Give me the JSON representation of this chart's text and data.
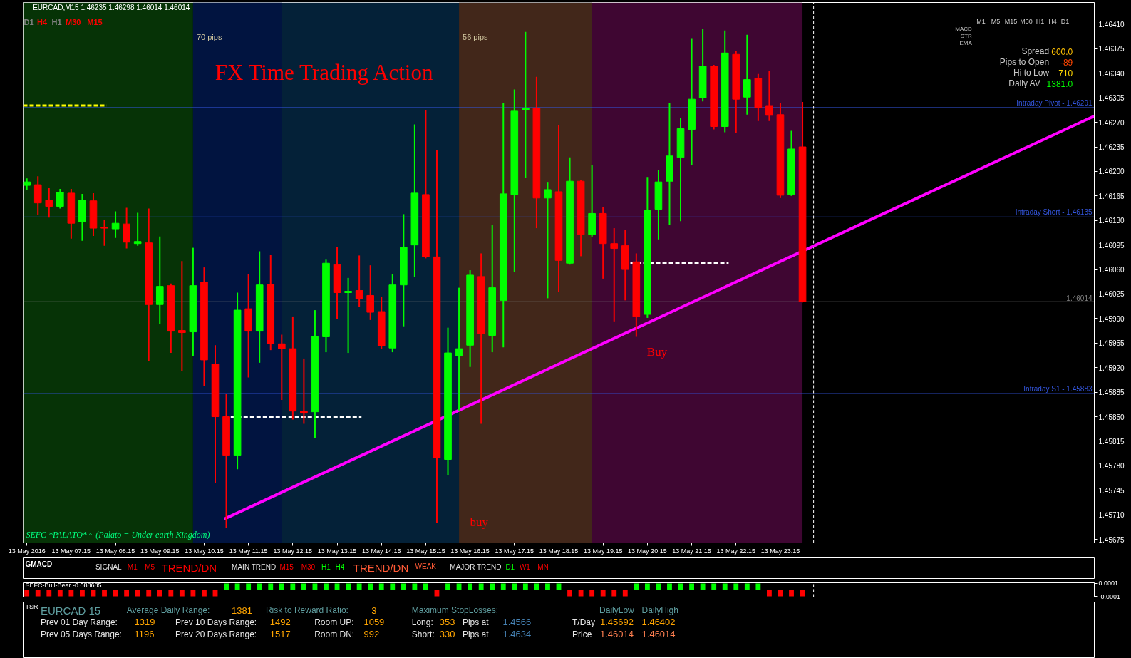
{
  "chart_data": [
    {
      "type": "candlestick",
      "title": "FX Time Trading Action",
      "subtitle": "EURCAD,M15 1.46235 1.46298 1.46014 1.46014",
      "x": [
        "2016-05-13T06:15",
        "2016-05-13T06:30",
        "2016-05-13T06:45",
        "2016-05-13T07:00",
        "2016-05-13T07:15",
        "2016-05-13T07:30",
        "2016-05-13T07:45",
        "2016-05-13T08:00",
        "2016-05-13T08:15",
        "2016-05-13T08:30",
        "2016-05-13T08:45",
        "2016-05-13T09:00",
        "2016-05-13T09:15",
        "2016-05-13T09:30",
        "2016-05-13T09:45",
        "2016-05-13T10:00",
        "2016-05-13T10:15",
        "2016-05-13T10:30",
        "2016-05-13T10:45",
        "2016-05-13T11:00",
        "2016-05-13T11:15",
        "2016-05-13T11:30",
        "2016-05-13T11:45",
        "2016-05-13T12:00",
        "2016-05-13T12:15",
        "2016-05-13T12:30",
        "2016-05-13T12:45",
        "2016-05-13T13:00",
        "2016-05-13T13:15",
        "2016-05-13T13:30",
        "2016-05-13T13:45",
        "2016-05-13T14:00",
        "2016-05-13T14:15",
        "2016-05-13T14:30",
        "2016-05-13T14:45",
        "2016-05-13T15:00",
        "2016-05-13T15:15",
        "2016-05-13T15:30",
        "2016-05-13T15:45",
        "2016-05-13T16:00",
        "2016-05-13T16:15",
        "2016-05-13T16:30",
        "2016-05-13T16:45",
        "2016-05-13T17:00",
        "2016-05-13T17:15",
        "2016-05-13T17:30",
        "2016-05-13T17:45",
        "2016-05-13T18:00",
        "2016-05-13T18:15",
        "2016-05-13T18:30",
        "2016-05-13T18:45",
        "2016-05-13T19:00",
        "2016-05-13T19:15",
        "2016-05-13T19:30",
        "2016-05-13T19:45",
        "2016-05-13T20:00",
        "2016-05-13T20:15",
        "2016-05-13T20:30",
        "2016-05-13T20:45",
        "2016-05-13T21:00",
        "2016-05-13T21:15",
        "2016-05-13T21:30",
        "2016-05-13T21:45",
        "2016-05-13T22:00",
        "2016-05-13T22:15",
        "2016-05-13T22:30",
        "2016-05-13T22:45",
        "2016-05-13T23:00",
        "2016-05-13T23:15",
        "2016-05-13T23:30",
        "2016-05-13T23:45"
      ],
      "ohlc": [
        [
          1.4618,
          1.46189,
          1.46175,
          1.46185
        ],
        [
          1.46181,
          1.46192,
          1.46139,
          1.46155
        ],
        [
          1.46159,
          1.46175,
          1.46135,
          1.4615
        ],
        [
          1.4615,
          1.46174,
          1.46148,
          1.4617
        ],
        [
          1.46169,
          1.46174,
          1.46105,
          1.46126
        ],
        [
          1.46128,
          1.46167,
          1.46102,
          1.46159
        ],
        [
          1.46158,
          1.46168,
          1.46109,
          1.46119
        ],
        [
          1.4612,
          1.4613,
          1.46095,
          1.46119
        ],
        [
          1.46118,
          1.46142,
          1.46106,
          1.46126
        ],
        [
          1.46125,
          1.46147,
          1.46091,
          1.46099
        ],
        [
          1.46097,
          1.4614,
          1.46095,
          1.461
        ],
        [
          1.46098,
          1.46146,
          1.45931,
          1.4601
        ],
        [
          1.4601,
          1.46106,
          1.45983,
          1.46036
        ],
        [
          1.46037,
          1.46039,
          1.45942,
          1.45972
        ],
        [
          1.45973,
          1.46071,
          1.45916,
          1.4597
        ],
        [
          1.45971,
          1.4609,
          1.45937,
          1.46037
        ],
        [
          1.46042,
          1.46062,
          1.45895,
          1.45931
        ],
        [
          1.45925,
          1.45951,
          1.45757,
          1.4585
        ],
        [
          1.4585,
          1.45882,
          1.45692,
          1.45795
        ],
        [
          1.45795,
          1.46026,
          1.45776,
          1.46002
        ],
        [
          1.46004,
          1.46052,
          1.45907,
          1.45972
        ],
        [
          1.45972,
          1.46085,
          1.45928,
          1.46038
        ],
        [
          1.46039,
          1.4608,
          1.45946,
          1.45954
        ],
        [
          1.45954,
          1.45966,
          1.45875,
          1.45947
        ],
        [
          1.45947,
          1.45992,
          1.45847,
          1.45858
        ],
        [
          1.45858,
          1.45932,
          1.45841,
          1.45855
        ],
        [
          1.45857,
          1.46001,
          1.4582,
          1.45964
        ],
        [
          1.45964,
          1.46073,
          1.45943,
          1.46069
        ],
        [
          1.46067,
          1.46091,
          1.4599,
          1.46027
        ],
        [
          1.46027,
          1.46047,
          1.45942,
          1.46029
        ],
        [
          1.4603,
          1.46079,
          1.46008,
          1.46018
        ],
        [
          1.46023,
          1.46065,
          1.45989,
          1.45999
        ],
        [
          1.46,
          1.4602,
          1.45948,
          1.45951
        ],
        [
          1.45948,
          1.46052,
          1.45943,
          1.46038
        ],
        [
          1.46038,
          1.46138,
          1.4598,
          1.46092
        ],
        [
          1.46095,
          1.46266,
          1.4605,
          1.46169
        ],
        [
          1.46167,
          1.46286,
          1.46077,
          1.46078
        ],
        [
          1.46078,
          1.4623,
          1.457,
          1.45791
        ],
        [
          1.45789,
          1.45976,
          1.45768,
          1.45941
        ],
        [
          1.45937,
          1.46033,
          1.4586,
          1.45947
        ],
        [
          1.45952,
          1.46058,
          1.45922,
          1.46052
        ],
        [
          1.4605,
          1.46082,
          1.45841,
          1.45968
        ],
        [
          1.45966,
          1.46123,
          1.45943,
          1.46034
        ],
        [
          1.46016,
          1.46296,
          1.4595,
          1.46168
        ],
        [
          1.46167,
          1.46316,
          1.46057,
          1.46286
        ],
        [
          1.46288,
          1.46398,
          1.46192,
          1.4629
        ],
        [
          1.4629,
          1.46334,
          1.4612,
          1.46162
        ],
        [
          1.46162,
          1.46184,
          1.4602,
          1.46174
        ],
        [
          1.46171,
          1.46265,
          1.46029,
          1.46073
        ],
        [
          1.46069,
          1.46219,
          1.46068,
          1.46186
        ],
        [
          1.46186,
          1.46187,
          1.4608,
          1.4611
        ],
        [
          1.4611,
          1.46208,
          1.46108,
          1.4614
        ],
        [
          1.4614,
          1.46148,
          1.46048,
          1.46097
        ],
        [
          1.46097,
          1.46118,
          1.45987,
          1.4609
        ],
        [
          1.46094,
          1.46115,
          1.46017,
          1.4606
        ],
        [
          1.46071,
          1.46082,
          1.45965,
          1.45993
        ],
        [
          1.45996,
          1.46191,
          1.45992,
          1.46145
        ],
        [
          1.46146,
          1.46201,
          1.46104,
          1.46185
        ],
        [
          1.46186,
          1.46297,
          1.46125,
          1.46222
        ],
        [
          1.4622,
          1.46275,
          1.4613,
          1.46261
        ],
        [
          1.4626,
          1.46388,
          1.4621,
          1.46303
        ],
        [
          1.46305,
          1.46402,
          1.46301,
          1.4635
        ],
        [
          1.4635,
          1.46351,
          1.46261,
          1.46264
        ],
        [
          1.46264,
          1.464,
          1.46257,
          1.46369
        ],
        [
          1.46367,
          1.46371,
          1.46256,
          1.46303
        ],
        [
          1.46306,
          1.46394,
          1.46282,
          1.46331
        ],
        [
          1.46333,
          1.46338,
          1.46273,
          1.46291
        ],
        [
          1.46294,
          1.46342,
          1.46273,
          1.4628
        ],
        [
          1.46281,
          1.46296,
          1.46163,
          1.46166
        ],
        [
          1.46167,
          1.46257,
          1.46166,
          1.46232
        ],
        [
          1.46235,
          1.46298,
          1.46014,
          1.46014
        ]
      ],
      "colors": [
        "#00ff00",
        "#ff0000",
        "#ff0000",
        "#00ff00",
        "#ff0000",
        "#00ff00",
        "#ff0000",
        "#ff0000",
        "#00ff00",
        "#ff0000",
        "#00ff00",
        "#ff0000",
        "#00ff00",
        "#ff0000",
        "#ff0000",
        "#00ff00",
        "#ff0000",
        "#ff0000",
        "#ff0000",
        "#00ff00",
        "#ff0000",
        "#00ff00",
        "#ff0000",
        "#ff0000",
        "#ff0000",
        "#ff0000",
        "#00ff00",
        "#00ff00",
        "#ff0000",
        "#00ff00",
        "#ff0000",
        "#ff0000",
        "#ff0000",
        "#00ff00",
        "#00ff00",
        "#00ff00",
        "#ff0000",
        "#ff0000",
        "#00ff00",
        "#00ff00",
        "#00ff00",
        "#ff0000",
        "#00ff00",
        "#00ff00",
        "#00ff00",
        "#00ff00",
        "#ff0000",
        "#00ff00",
        "#ff0000",
        "#00ff00",
        "#ff0000",
        "#00ff00",
        "#ff0000",
        "#ff0000",
        "#ff0000",
        "#ff0000",
        "#00ff00",
        "#00ff00",
        "#00ff00",
        "#00ff00",
        "#00ff00",
        "#00ff00",
        "#ff0000",
        "#00ff00",
        "#ff0000",
        "#00ff00",
        "#ff0000",
        "#ff0000",
        "#ff0000",
        "#00ff00",
        "#ff0000"
      ],
      "xlim": [
        "2016-05-13T06:10",
        "2016-05-14T06:20"
      ],
      "xticks": [
        {
          "value": "2016-05-13T06:15",
          "label": "13 May 2016"
        },
        {
          "value": "2016-05-13T07:15",
          "label": "13 May 07:15"
        },
        {
          "value": "2016-05-13T08:15",
          "label": "13 May 08:15"
        },
        {
          "value": "2016-05-13T09:15",
          "label": "13 May 09:15"
        },
        {
          "value": "2016-05-13T10:15",
          "label": "13 May 10:15"
        },
        {
          "value": "2016-05-13T11:15",
          "label": "13 May 11:15"
        },
        {
          "value": "2016-05-13T12:15",
          "label": "13 May 12:15"
        },
        {
          "value": "2016-05-13T13:15",
          "label": "13 May 13:15"
        },
        {
          "value": "2016-05-13T14:15",
          "label": "13 May 14:15"
        },
        {
          "value": "2016-05-13T15:15",
          "label": "13 May 15:15"
        },
        {
          "value": "2016-05-13T16:15",
          "label": "13 May 16:15"
        },
        {
          "value": "2016-05-13T17:15",
          "label": "13 May 17:15"
        },
        {
          "value": "2016-05-13T18:15",
          "label": "13 May 18:15"
        },
        {
          "value": "2016-05-13T19:15",
          "label": "13 May 19:15"
        },
        {
          "value": "2016-05-13T20:15",
          "label": "13 May 20:15"
        },
        {
          "value": "2016-05-13T21:15",
          "label": "13 May 21:15"
        },
        {
          "value": "2016-05-13T22:15",
          "label": "13 May 22:15"
        },
        {
          "value": "2016-05-13T23:15",
          "label": "13 May 23:15"
        }
      ],
      "ylim": [
        1.4567,
        1.46441
      ],
      "yticks": [
        {
          "value": 1.45675,
          "label": "1.45675"
        },
        {
          "value": 1.4571,
          "label": "1.45710"
        },
        {
          "value": 1.45745,
          "label": "1.45745"
        },
        {
          "value": 1.4578,
          "label": "1.45780"
        },
        {
          "value": 1.45815,
          "label": "1.45815"
        },
        {
          "value": 1.4585,
          "label": "1.45850"
        },
        {
          "value": 1.45885,
          "label": "1.45885"
        },
        {
          "value": 1.4592,
          "label": "1.45920"
        },
        {
          "value": 1.45955,
          "label": "1.45955"
        },
        {
          "value": 1.4599,
          "label": "1.45990"
        },
        {
          "value": 1.46025,
          "label": "1.46025"
        },
        {
          "value": 1.4606,
          "label": "1.46060"
        },
        {
          "value": 1.46095,
          "label": "1.46095"
        },
        {
          "value": 1.4613,
          "label": "1.46130"
        },
        {
          "value": 1.46165,
          "label": "1.46165"
        },
        {
          "value": 1.462,
          "label": "1.46200"
        },
        {
          "value": 1.46235,
          "label": "1.46235"
        },
        {
          "value": 1.4627,
          "label": "1.46270"
        },
        {
          "value": 1.46305,
          "label": "1.46305"
        },
        {
          "value": 1.4634,
          "label": "1.46340"
        },
        {
          "value": 1.46375,
          "label": "1.46375"
        },
        {
          "value": 1.4641,
          "label": "1.46410"
        }
      ],
      "series": [
        {
          "type": "line",
          "color": "#ff00ff",
          "x": [
            "2016-05-13T10:42",
            "2016-05-14T06:20"
          ],
          "values": [
            1.45704,
            1.46279
          ]
        },
        {
          "type": "line",
          "color": "#ffffff",
          "line_style": "dashed",
          "x": [
            "2016-05-13T10:51",
            "2016-05-13T13:48"
          ],
          "values": [
            1.4585,
            1.4585
          ]
        },
        {
          "type": "line",
          "color": "#ffffff",
          "line_style": "dashed",
          "x": [
            "2016-05-13T19:52",
            "2016-05-13T22:05"
          ],
          "values": [
            1.46069,
            1.46069
          ]
        },
        {
          "type": "line",
          "color": "#ffff00",
          "line_style": "dashed",
          "x": [
            "2016-05-13T06:10",
            "2016-05-13T08:03"
          ],
          "values": [
            1.46294,
            1.46294
          ]
        }
      ],
      "ref_lines": [
        {
          "axis": "y",
          "value": 1.46291,
          "label": "Intraday Pivot - 1.46291",
          "color": "#3355dd"
        },
        {
          "axis": "y",
          "value": 1.46135,
          "label": "Intraday Short - 1.46135",
          "color": "#3355dd"
        },
        {
          "axis": "y",
          "value": 1.45883,
          "label": "Intraday S1 - 1.45883",
          "color": "#3355dd"
        },
        {
          "axis": "y",
          "value": 1.46014,
          "label": "1.46014",
          "color": "#808080"
        },
        {
          "axis": "x",
          "value": "2016-05-14T00:00",
          "color": "#ffffff",
          "line_style": "dashed"
        }
      ],
      "bands": [
        {
          "axis": "x",
          "from": "2016-05-13T06:10",
          "to": "2016-05-13T10:00",
          "color": "#063306"
        },
        {
          "axis": "x",
          "from": "2016-05-13T10:00",
          "to": "2016-05-13T19:00",
          "label": "70 pips",
          "color": "#042138"
        },
        {
          "axis": "x",
          "from": "2016-05-13T10:00",
          "to": "2016-05-13T12:00",
          "color": "#011440"
        },
        {
          "axis": "x",
          "from": "2016-05-13T16:00",
          "to": "2016-05-13T19:00",
          "label": "56 pips",
          "color": "#42271a"
        },
        {
          "axis": "x",
          "from": "2016-05-13T19:00",
          "to": "2016-05-13T23:45",
          "color": "#3f0632"
        }
      ],
      "annotations": [
        "D1",
        "H4",
        "H1",
        "M30",
        "M15",
        "SEFC *PALATO* ~ (Palato = Under earth Kingdom)",
        "M1",
        "M5",
        "M15",
        "M30",
        "H1",
        "H4",
        "D1",
        "MACD",
        "STR",
        "EMA",
        "Spread",
        "600.0",
        "Pips to Open",
        "-89",
        "Hi to Low",
        "710",
        "Daily AV",
        "1381.0",
        "buy",
        "Buy"
      ]
    },
    {
      "type": "other",
      "title": "GMACD",
      "annotations": [
        "SIGNAL",
        "M1",
        "M5",
        "TREND/DN",
        "MAIN TREND",
        "M15",
        "M30",
        "H1",
        "H4",
        "TREND/DN",
        "WEAK",
        "MAJOR TREND",
        "D1",
        "W1",
        "MN"
      ]
    },
    {
      "type": "bar",
      "title": "SEFC-Bull-Bear -0.088685",
      "x": [
        "2016-05-13T06:15",
        "2016-05-13T06:30",
        "2016-05-13T06:45",
        "2016-05-13T07:00",
        "2016-05-13T07:15",
        "2016-05-13T07:30",
        "2016-05-13T07:45",
        "2016-05-13T08:00",
        "2016-05-13T08:15",
        "2016-05-13T08:30",
        "2016-05-13T08:45",
        "2016-05-13T09:00",
        "2016-05-13T09:15",
        "2016-05-13T09:30",
        "2016-05-13T09:45",
        "2016-05-13T10:00",
        "2016-05-13T10:15",
        "2016-05-13T10:30",
        "2016-05-13T10:45",
        "2016-05-13T11:00",
        "2016-05-13T11:15",
        "2016-05-13T11:30",
        "2016-05-13T11:45",
        "2016-05-13T12:00",
        "2016-05-13T12:15",
        "2016-05-13T12:30",
        "2016-05-13T12:45",
        "2016-05-13T13:00",
        "2016-05-13T13:15",
        "2016-05-13T13:30",
        "2016-05-13T13:45",
        "2016-05-13T14:00",
        "2016-05-13T14:15",
        "2016-05-13T14:30",
        "2016-05-13T14:45",
        "2016-05-13T15:00",
        "2016-05-13T15:15",
        "2016-05-13T15:30",
        "2016-05-13T15:45",
        "2016-05-13T16:00",
        "2016-05-13T16:15",
        "2016-05-13T16:30",
        "2016-05-13T16:45",
        "2016-05-13T17:00",
        "2016-05-13T17:15",
        "2016-05-13T17:30",
        "2016-05-13T17:45",
        "2016-05-13T18:00",
        "2016-05-13T18:15",
        "2016-05-13T18:30",
        "2016-05-13T18:45",
        "2016-05-13T19:00",
        "2016-05-13T19:15",
        "2016-05-13T19:30",
        "2016-05-13T19:45",
        "2016-05-13T20:00",
        "2016-05-13T20:15",
        "2016-05-13T20:30",
        "2016-05-13T20:45",
        "2016-05-13T21:00",
        "2016-05-13T21:15",
        "2016-05-13T21:30",
        "2016-05-13T21:45",
        "2016-05-13T22:00",
        "2016-05-13T22:15",
        "2016-05-13T22:30",
        "2016-05-13T22:45",
        "2016-05-13T23:00",
        "2016-05-13T23:15",
        "2016-05-13T23:30",
        "2016-05-13T23:45"
      ],
      "values": [
        -0.0001,
        -0.0001,
        -0.0001,
        -0.0001,
        -0.0001,
        -0.0001,
        -0.0001,
        -0.0001,
        -0.0001,
        -0.0001,
        -0.0001,
        -0.0001,
        -0.0001,
        -0.0001,
        -0.0001,
        -0.0001,
        -0.0001,
        -0.0001,
        0.0001,
        0.0001,
        0.0001,
        0.0001,
        0.0001,
        0.0001,
        0.0001,
        0.0001,
        0.0001,
        0.0001,
        0.0001,
        0.0001,
        0.0001,
        0.0001,
        0.0001,
        0.0001,
        0.0001,
        0.0001,
        0.0001,
        -0.0001,
        0.0001,
        0.0001,
        0.0001,
        0.0001,
        0.0001,
        0.0001,
        0.0001,
        0.0001,
        0.0001,
        0.0001,
        0.0001,
        -0.0001,
        -0.0001,
        -0.0001,
        -0.0001,
        -0.0001,
        -0.0001,
        0.0001,
        0.0001,
        0.0001,
        0.0001,
        0.0001,
        0.0001,
        0.0001,
        0.0001,
        0.0001,
        0.0001,
        0.0001,
        0.0001,
        -0.0001,
        -0.0001,
        -0.0001,
        -0.0001
      ],
      "colors": [
        "#ff0000",
        "#ff0000",
        "#ff0000",
        "#ff0000",
        "#ff0000",
        "#ff0000",
        "#ff0000",
        "#ff0000",
        "#ff0000",
        "#ff0000",
        "#ff0000",
        "#ff0000",
        "#ff0000",
        "#ff0000",
        "#ff0000",
        "#ff0000",
        "#ff0000",
        "#ff0000",
        "#00ff00",
        "#00ff00",
        "#00ff00",
        "#00ff00",
        "#00ff00",
        "#00ff00",
        "#00ff00",
        "#00ff00",
        "#00ff00",
        "#00ff00",
        "#00ff00",
        "#00ff00",
        "#00ff00",
        "#00ff00",
        "#00ff00",
        "#00ff00",
        "#00ff00",
        "#00ff00",
        "#00ff00",
        "#ff0000",
        "#00ff00",
        "#00ff00",
        "#00ff00",
        "#00ff00",
        "#00ff00",
        "#00ff00",
        "#00ff00",
        "#00ff00",
        "#00ff00",
        "#00ff00",
        "#00ff00",
        "#ff0000",
        "#ff0000",
        "#ff0000",
        "#ff0000",
        "#ff0000",
        "#ff0000",
        "#00ff00",
        "#00ff00",
        "#00ff00",
        "#00ff00",
        "#00ff00",
        "#00ff00",
        "#00ff00",
        "#00ff00",
        "#00ff00",
        "#00ff00",
        "#00ff00",
        "#00ff00",
        "#ff0000",
        "#ff0000",
        "#ff0000",
        "#ff0000"
      ],
      "xlim": [
        "2016-05-13T06:10",
        "2016-05-14T06:20"
      ],
      "ylim": [
        -0.00011,
        0.00011
      ],
      "yticks": [
        0.0001,
        -0.0001
      ],
      "tick_labels": "y",
      "ref_lines": [
        {
          "axis": "x",
          "value": "2016-05-14T00:00",
          "color": "#ffffff",
          "line_style": "dashed"
        }
      ]
    },
    {
      "type": "other",
      "title": "TSR",
      "annotations": [
        "EURCAD 15",
        "Average Daily Range:",
        "1381",
        "Risk to Reward Ratio:",
        "3",
        "Maximum StopLosses;",
        "DailyLow",
        "DailyHigh",
        "Prev 01 Day Range:",
        "1319",
        "Prev 10 Days Range:",
        "1492",
        "Room UP:",
        "1059",
        "Long:",
        "353",
        "Pips at",
        "1.4566",
        "T/Day",
        "1.45692",
        "1.46402",
        "Prev 05 Days Range:",
        "1196",
        "Prev 20 Days Range:",
        "1517",
        "Room DN:",
        "992",
        "Short:",
        "330",
        "Pips at",
        "1.4634",
        "Price",
        "1.46014",
        "1.46014"
      ]
    }
  ]
}
